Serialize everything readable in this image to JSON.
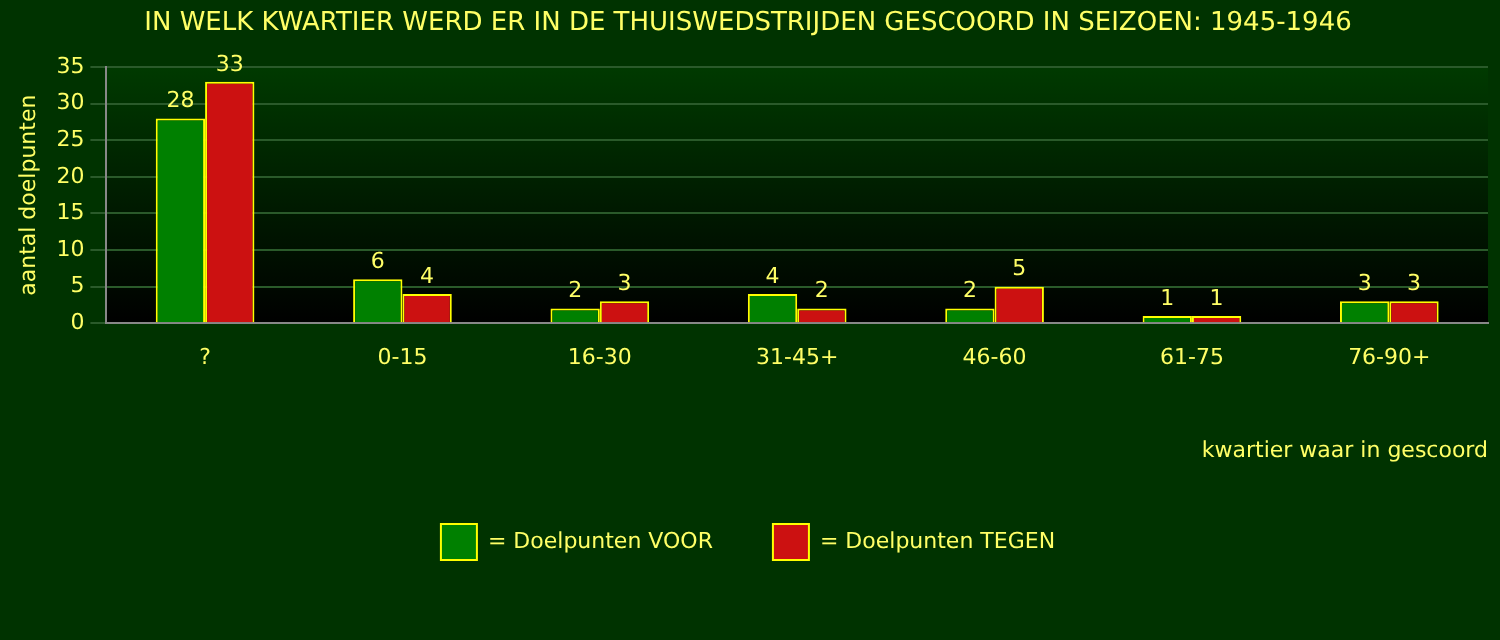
{
  "chart_data": {
    "type": "bar",
    "title": "IN WELK KWARTIER WERD ER IN DE THUISWEDSTRIJDEN GESCOORD IN SEIZOEN: 1945-1946",
    "xlabel": "kwartier waar in gescoord",
    "ylabel": "aantal doelpunten",
    "categories": [
      "?",
      "0-15",
      "16-30",
      "31-45+",
      "46-60",
      "61-75",
      "76-90+"
    ],
    "series": [
      {
        "name": "= Doelpunten VOOR",
        "color": "#008000",
        "values": [
          28,
          6,
          2,
          4,
          2,
          1,
          3
        ]
      },
      {
        "name": "= Doelpunten TEGEN",
        "color": "#cc1111",
        "values": [
          33,
          4,
          3,
          2,
          5,
          1,
          3
        ]
      }
    ],
    "ylim": [
      0,
      35
    ],
    "yticks": [
      0,
      5,
      10,
      15,
      20,
      25,
      30,
      35
    ],
    "grid": "y",
    "legend": "bottom",
    "data_labels": true
  }
}
